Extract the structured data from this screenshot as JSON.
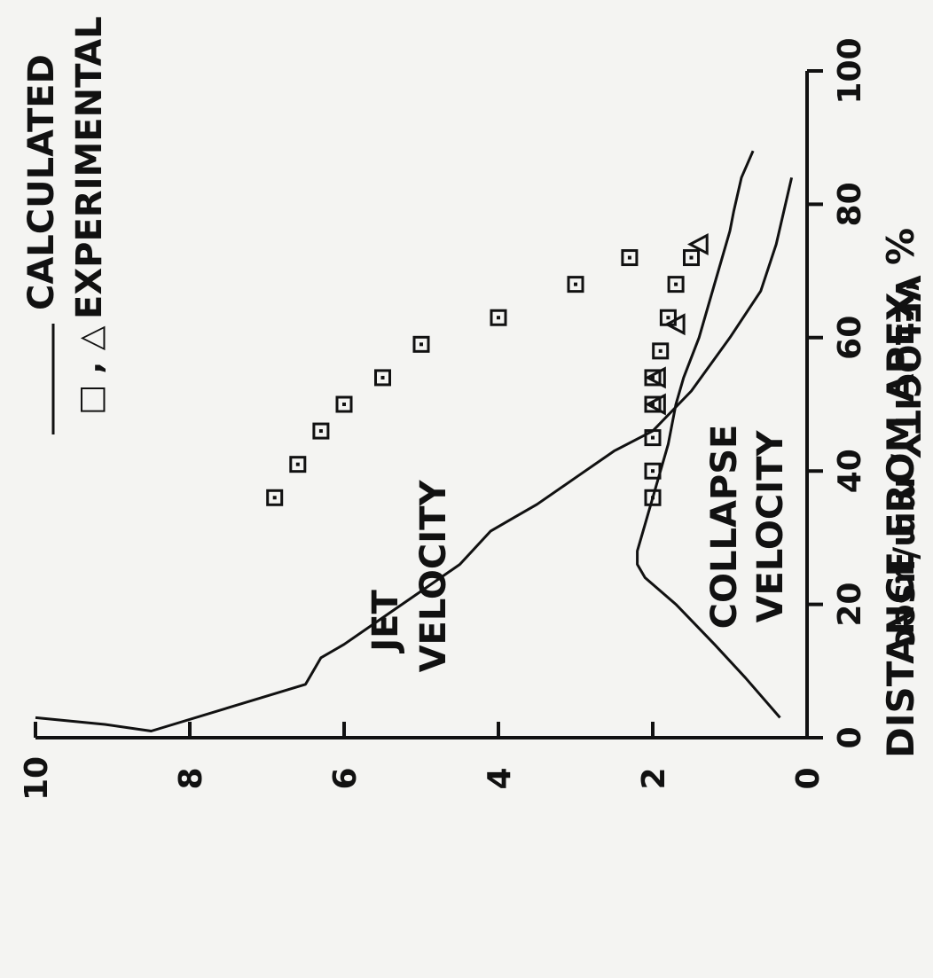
{
  "chart_data": {
    "type": "line",
    "xlabel": "DISTANCE FROM APEX, %",
    "ylabel": "VELOCITY, mm/μsec",
    "xlim": [
      0,
      100
    ],
    "ylim": [
      0,
      10
    ],
    "x_ticks": [
      "0",
      "20",
      "40",
      "60",
      "80",
      "100"
    ],
    "y_ticks": [
      "0",
      "2",
      "4",
      "6",
      "8",
      "10"
    ],
    "grid": false,
    "legend_position": "top-right",
    "legend": {
      "calculated_label": "CALCULATED",
      "experimental_symbols": "□ , △",
      "experimental_label": "EXPERIMENTAL"
    },
    "annotations": {
      "jet_line1": "JET",
      "jet_line2": "VELOCITY",
      "collapse_line1": "COLLAPSE",
      "collapse_line2": "VELOCITY"
    },
    "series": [
      {
        "name": "JET VELOCITY",
        "kind": "calculated",
        "x": [
          3,
          2,
          1,
          8,
          12,
          14,
          18,
          22,
          26,
          31,
          33,
          35,
          39,
          43,
          46,
          52,
          60,
          67,
          74,
          79,
          84
        ],
        "y": [
          10,
          9.1,
          8.5,
          6.5,
          6.3,
          6.0,
          5.5,
          5.0,
          4.5,
          4.1,
          3.8,
          3.5,
          3.0,
          2.5,
          2.0,
          1.5,
          1.0,
          0.6,
          0.4,
          0.3,
          0.2
        ]
      },
      {
        "name": "COLLAPSE VELOCITY",
        "kind": "calculated",
        "x": [
          3,
          9,
          14,
          20,
          24,
          26,
          28,
          32,
          36,
          40,
          44,
          50,
          54,
          60,
          64,
          68,
          72,
          76,
          79,
          84,
          88
        ],
        "y": [
          0.35,
          0.8,
          1.2,
          1.7,
          2.1,
          2.2,
          2.2,
          2.1,
          2.0,
          1.9,
          1.8,
          1.7,
          1.6,
          1.4,
          1.3,
          1.2,
          1.1,
          1.0,
          0.95,
          0.85,
          0.7
        ]
      },
      {
        "name": "Jet velocity",
        "kind": "experimental",
        "marker": "square",
        "x": [
          36,
          41,
          46,
          50,
          54,
          59,
          63,
          68,
          72
        ],
        "y": [
          6.9,
          6.6,
          6.3,
          6.0,
          5.5,
          5.0,
          4.0,
          3.0,
          2.3
        ]
      },
      {
        "name": "Collapse velocity",
        "kind": "experimental",
        "marker": "square",
        "x": [
          36,
          40,
          45,
          50,
          54,
          58,
          63,
          68,
          72
        ],
        "y": [
          2.0,
          2.0,
          2.0,
          2.0,
          2.0,
          1.9,
          1.8,
          1.7,
          1.5
        ]
      },
      {
        "name": "Collapse velocity",
        "kind": "experimental",
        "marker": "triangle",
        "x": [
          50,
          54,
          62,
          74
        ],
        "y": [
          1.95,
          1.95,
          1.7,
          1.4
        ]
      }
    ]
  }
}
